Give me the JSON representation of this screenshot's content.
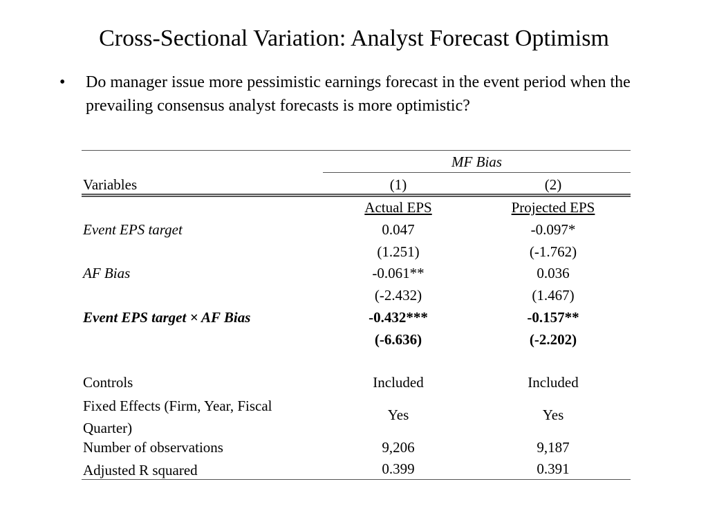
{
  "title": "Cross-Sectional Variation: Analyst Forecast Optimism",
  "bullet": {
    "marker": "•",
    "text": "Do manager issue more pessimistic earnings forecast in the event period when the prevailing consensus analyst forecasts is more optimistic?"
  },
  "table": {
    "group_header": "MF Bias",
    "variables_label": "Variables",
    "col_numbers": [
      "(1)",
      "(2)"
    ],
    "col_names": [
      "Actual EPS",
      "Projected EPS"
    ],
    "rows": [
      {
        "label": "Event EPS target",
        "coef": [
          "0.047",
          "-0.097*"
        ],
        "tstat": [
          "(1.251)",
          "(-1.762)"
        ]
      },
      {
        "label": "AF Bias",
        "coef": [
          "-0.061**",
          "0.036"
        ],
        "tstat": [
          "(-2.432)",
          "(1.467)"
        ]
      },
      {
        "label": "Event EPS target × AF Bias",
        "coef": [
          "-0.432***",
          "-0.157**"
        ],
        "tstat": [
          "(-6.636)",
          "(-2.202)"
        ]
      }
    ],
    "footer": [
      {
        "label": "Controls",
        "values": [
          "Included",
          "Included"
        ]
      },
      {
        "label": "Fixed Effects (Firm, Year, Fiscal Quarter)",
        "values": [
          "Yes",
          "Yes"
        ]
      },
      {
        "label": "Number of observations",
        "values": [
          "9,206",
          "9,187"
        ]
      },
      {
        "label": "Adjusted R squared",
        "values": [
          "0.399",
          "0.391"
        ]
      }
    ]
  }
}
